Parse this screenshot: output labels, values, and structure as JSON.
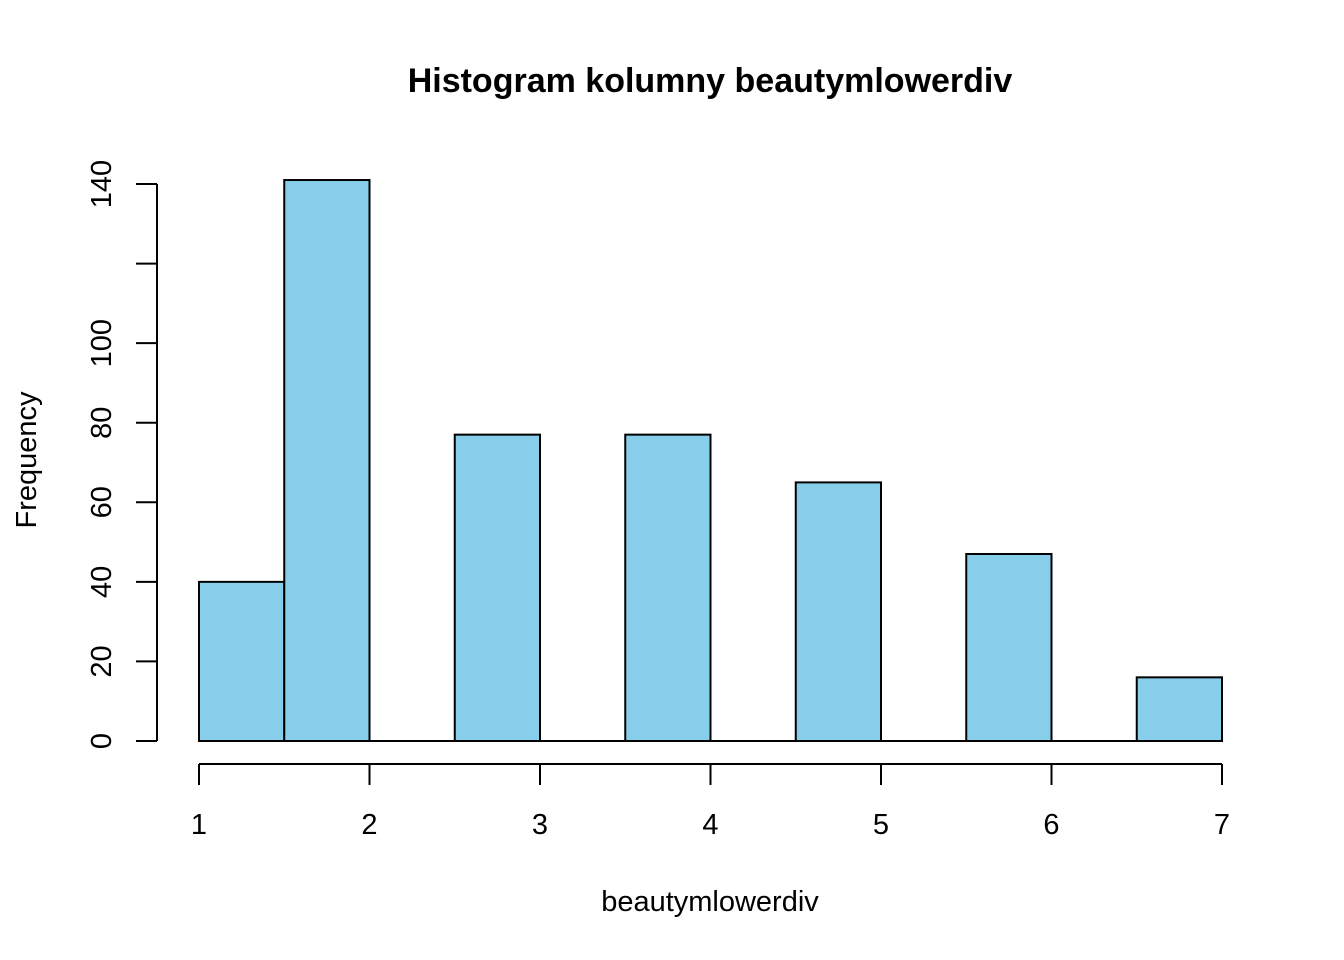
{
  "chart_data": {
    "type": "bar",
    "histogram": true,
    "title": "Histogram kolumny beautymlowerdiv",
    "xlabel": "beautymlowerdiv",
    "ylabel": "Frequency",
    "bins": [
      {
        "from": 1.0,
        "to": 1.5,
        "count": 40
      },
      {
        "from": 1.5,
        "to": 2.0,
        "count": 141
      },
      {
        "from": 2.0,
        "to": 2.5,
        "count": 0
      },
      {
        "from": 2.5,
        "to": 3.0,
        "count": 77
      },
      {
        "from": 3.0,
        "to": 3.5,
        "count": 0
      },
      {
        "from": 3.5,
        "to": 4.0,
        "count": 77
      },
      {
        "from": 4.0,
        "to": 4.5,
        "count": 0
      },
      {
        "from": 4.5,
        "to": 5.0,
        "count": 65
      },
      {
        "from": 5.0,
        "to": 5.5,
        "count": 0
      },
      {
        "from": 5.5,
        "to": 6.0,
        "count": 47
      },
      {
        "from": 6.0,
        "to": 6.5,
        "count": 0
      },
      {
        "from": 6.5,
        "to": 7.0,
        "count": 16
      }
    ],
    "xlim": [
      1,
      7
    ],
    "ylim": [
      0,
      140
    ],
    "x_ticks": [
      "1",
      "2",
      "3",
      "4",
      "5",
      "6",
      "7"
    ],
    "y_ticks": [
      "0",
      "20",
      "40",
      "60",
      "80",
      "100",
      "",
      "140"
    ],
    "y_tick_values": [
      0,
      20,
      40,
      60,
      80,
      100,
      120,
      140
    ],
    "bar_color": "#87CEEB",
    "grid": false,
    "legend": "none"
  }
}
